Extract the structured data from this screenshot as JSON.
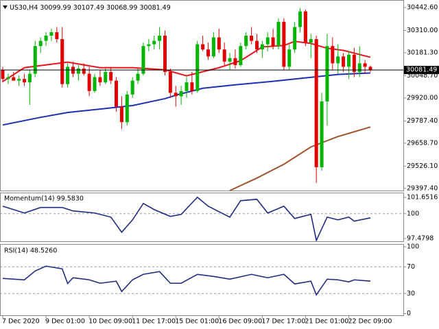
{
  "chart_data": {
    "type": "candlestick",
    "symbol": "US30,H4",
    "categories": [
      "7 Dec 2020",
      null,
      null,
      null,
      null,
      null,
      null,
      null,
      "9 Dec 01:00",
      null,
      null,
      null,
      null,
      null,
      null,
      null,
      "10 Dec 09:00",
      null,
      null,
      null,
      null,
      null,
      null,
      null,
      "11 Dec 17:00",
      null,
      null,
      null,
      null,
      null,
      null,
      null,
      "15 Dec 01:00",
      null,
      null,
      null,
      null,
      null,
      null,
      null,
      "16 Dec 09:00",
      null,
      null,
      null,
      null,
      null,
      null,
      null,
      "17 Dec 17:00",
      null,
      null,
      null,
      null,
      null,
      null,
      null,
      "21 Dec 01:00",
      null,
      null,
      null,
      null,
      null,
      null,
      null,
      "22 Dec 09:00",
      null,
      null,
      null,
      null
    ],
    "open": [
      30080,
      30030,
      30040,
      30020,
      30030,
      30010,
      30060,
      30220,
      30250,
      30280,
      30300,
      30260,
      30000,
      30100,
      30060,
      30090,
      30060,
      29960,
      30040,
      30010,
      30070,
      30020,
      29870,
      29780,
      29940,
      30020,
      30060,
      30220,
      30230,
      30250,
      30280,
      30070,
      29950,
      29930,
      29960,
      30010,
      29960,
      30230,
      30200,
      30160,
      30270,
      30200,
      30130,
      30150,
      30110,
      30220,
      30280,
      30250,
      30200,
      30230,
      30270,
      30220,
      30360,
      30100,
      30200,
      30330,
      30420,
      30240,
      30260,
      29520,
      29900,
      30220,
      30120,
      30160,
      30100,
      30170,
      30070,
      30120,
      30099.99
    ],
    "high": [
      30100,
      30060,
      30070,
      30050,
      30060,
      30080,
      30250,
      30270,
      30300,
      30320,
      30330,
      30330,
      30120,
      30130,
      30110,
      30120,
      30100,
      30060,
      30080,
      30090,
      30100,
      30040,
      29930,
      29960,
      30040,
      30090,
      30240,
      30260,
      30280,
      30330,
      30310,
      30090,
      29990,
      29990,
      30040,
      30070,
      30250,
      30280,
      30240,
      30300,
      30320,
      30240,
      30180,
      30200,
      30240,
      30300,
      30330,
      30290,
      30250,
      30300,
      30320,
      30380,
      30380,
      30230,
      30360,
      30440,
      30430,
      30290,
      30280,
      29950,
      30290,
      30270,
      30230,
      30180,
      30190,
      30210,
      30220,
      30140,
      30107.49
    ],
    "low": [
      30010,
      30000,
      30020,
      29990,
      29990,
      29880,
      30040,
      30180,
      30220,
      30250,
      30240,
      29980,
      29980,
      30040,
      30020,
      30050,
      29930,
      29950,
      29990,
      30000,
      30000,
      29840,
      29740,
      29760,
      29920,
      30000,
      30050,
      30190,
      30200,
      30200,
      30050,
      29920,
      29870,
      29880,
      29920,
      29940,
      29950,
      30190,
      30140,
      30150,
      30180,
      30110,
      30080,
      30090,
      30100,
      30200,
      30230,
      30180,
      30150,
      30190,
      30200,
      30200,
      30080,
      30080,
      30180,
      30300,
      30220,
      30150,
      29430,
      29500,
      29760,
      30080,
      30060,
      30070,
      30030,
      30040,
      30040,
      30060,
      30068.99
    ],
    "close": [
      30030,
      30040,
      30020,
      30030,
      30010,
      30060,
      30220,
      30250,
      30280,
      30300,
      30260,
      30000,
      30100,
      30060,
      30090,
      30060,
      29960,
      30040,
      30010,
      30070,
      30020,
      29870,
      29780,
      29940,
      30020,
      30060,
      30220,
      30230,
      30250,
      30280,
      30070,
      29950,
      29930,
      29960,
      30010,
      29960,
      30230,
      30200,
      30160,
      30270,
      30200,
      30130,
      30150,
      30110,
      30220,
      30280,
      30250,
      30200,
      30230,
      30270,
      30220,
      30360,
      30100,
      30200,
      30330,
      30420,
      30240,
      30260,
      29520,
      29900,
      30220,
      30120,
      30160,
      30100,
      30170,
      30070,
      30120,
      30099.99,
      30081.49
    ],
    "up_color": "#00b400",
    "down_color": "#e00000",
    "price_line_color": "#000000",
    "ylim": [
      29385,
      30486
    ],
    "yticks": [
      {
        "value": 30442.6,
        "label": "30442.60"
      },
      {
        "value": 30310,
        "label": "30310.00"
      },
      {
        "value": 30181.3,
        "label": "30181.30"
      },
      {
        "value": 30048.7,
        "label": "30048.70"
      },
      {
        "value": 29920,
        "label": "29920.00"
      },
      {
        "value": 29787.4,
        "label": "29787.40"
      },
      {
        "value": 29658.7,
        "label": "29658.70"
      },
      {
        "value": 29526.1,
        "label": "29526.10"
      },
      {
        "value": 29397.4,
        "label": "29397.40"
      }
    ],
    "series": [
      {
        "color": "#e8141b",
        "x": [
          0,
          4,
          12,
          18,
          24,
          30,
          34,
          40,
          44,
          48,
          52,
          54,
          57,
          60,
          63,
          68
        ],
        "values": [
          30015,
          30095,
          30127,
          30095,
          30095,
          30083,
          30048,
          30095,
          30135,
          30215,
          30223,
          30247,
          30235,
          30207,
          30195,
          30155
        ]
      },
      {
        "color": "#1f2fb4",
        "x": [
          0,
          7,
          12,
          18,
          24,
          30,
          32,
          37,
          43,
          50,
          56,
          62,
          68
        ],
        "values": [
          29764,
          29808,
          29836,
          29856,
          29876,
          29916,
          29936,
          29976,
          29996,
          30016,
          30036,
          30056,
          30064
        ]
      },
      {
        "color": "#a0522d",
        "x": [
          42,
          47,
          52,
          57,
          62,
          68
        ],
        "values": [
          29385,
          29457,
          29537,
          29637,
          29697,
          29752
        ]
      }
    ],
    "panels": [
      {
        "type": "line",
        "title": "Momentum(14) 99.5830",
        "color": "#1f2a80",
        "x": [
          0,
          2,
          4,
          7,
          11,
          13,
          17,
          20,
          22,
          24,
          26,
          28,
          31,
          33,
          36,
          38,
          42,
          44,
          47,
          49,
          52,
          54,
          57,
          58,
          60,
          62,
          64,
          65,
          68
        ],
        "values": [
          100.76,
          100.42,
          100.07,
          100.63,
          100.63,
          100.28,
          100.07,
          99.65,
          98.12,
          99.37,
          101.04,
          100.42,
          99.72,
          99.93,
          101.67,
          100.76,
          99.65,
          101.32,
          101.46,
          100.07,
          100.76,
          99.51,
          99.93,
          97.29,
          99.65,
          99.37,
          99.65,
          99.24,
          99.58
        ],
        "ylim": [
          97.2,
          102.07
        ],
        "yticks": [
          101.6516,
          100,
          97.4798
        ],
        "levels": [
          100
        ]
      },
      {
        "type": "line",
        "title": "RSI(14) 48.5260",
        "color": "#1f2a80",
        "x": [
          0,
          4,
          6,
          8,
          11,
          12,
          13,
          16,
          18,
          21,
          22,
          24,
          26,
          29,
          31,
          33,
          36,
          39,
          42,
          46,
          49,
          52,
          54,
          57,
          58,
          60,
          62,
          64,
          65,
          68
        ],
        "values": [
          52.6,
          50.5,
          63.8,
          71,
          67,
          45,
          53.6,
          50.5,
          45.4,
          48.5,
          33,
          50.5,
          58.7,
          62.8,
          45.4,
          45.4,
          58.7,
          55.6,
          51.5,
          58.7,
          53.6,
          58.7,
          44.4,
          48.5,
          28,
          51.5,
          50.5,
          47.4,
          50.5,
          48.53
        ],
        "ylim": [
          0,
          100
        ],
        "yticks": [
          100,
          70,
          30,
          0
        ],
        "levels": [
          70,
          30
        ]
      }
    ]
  }
}
